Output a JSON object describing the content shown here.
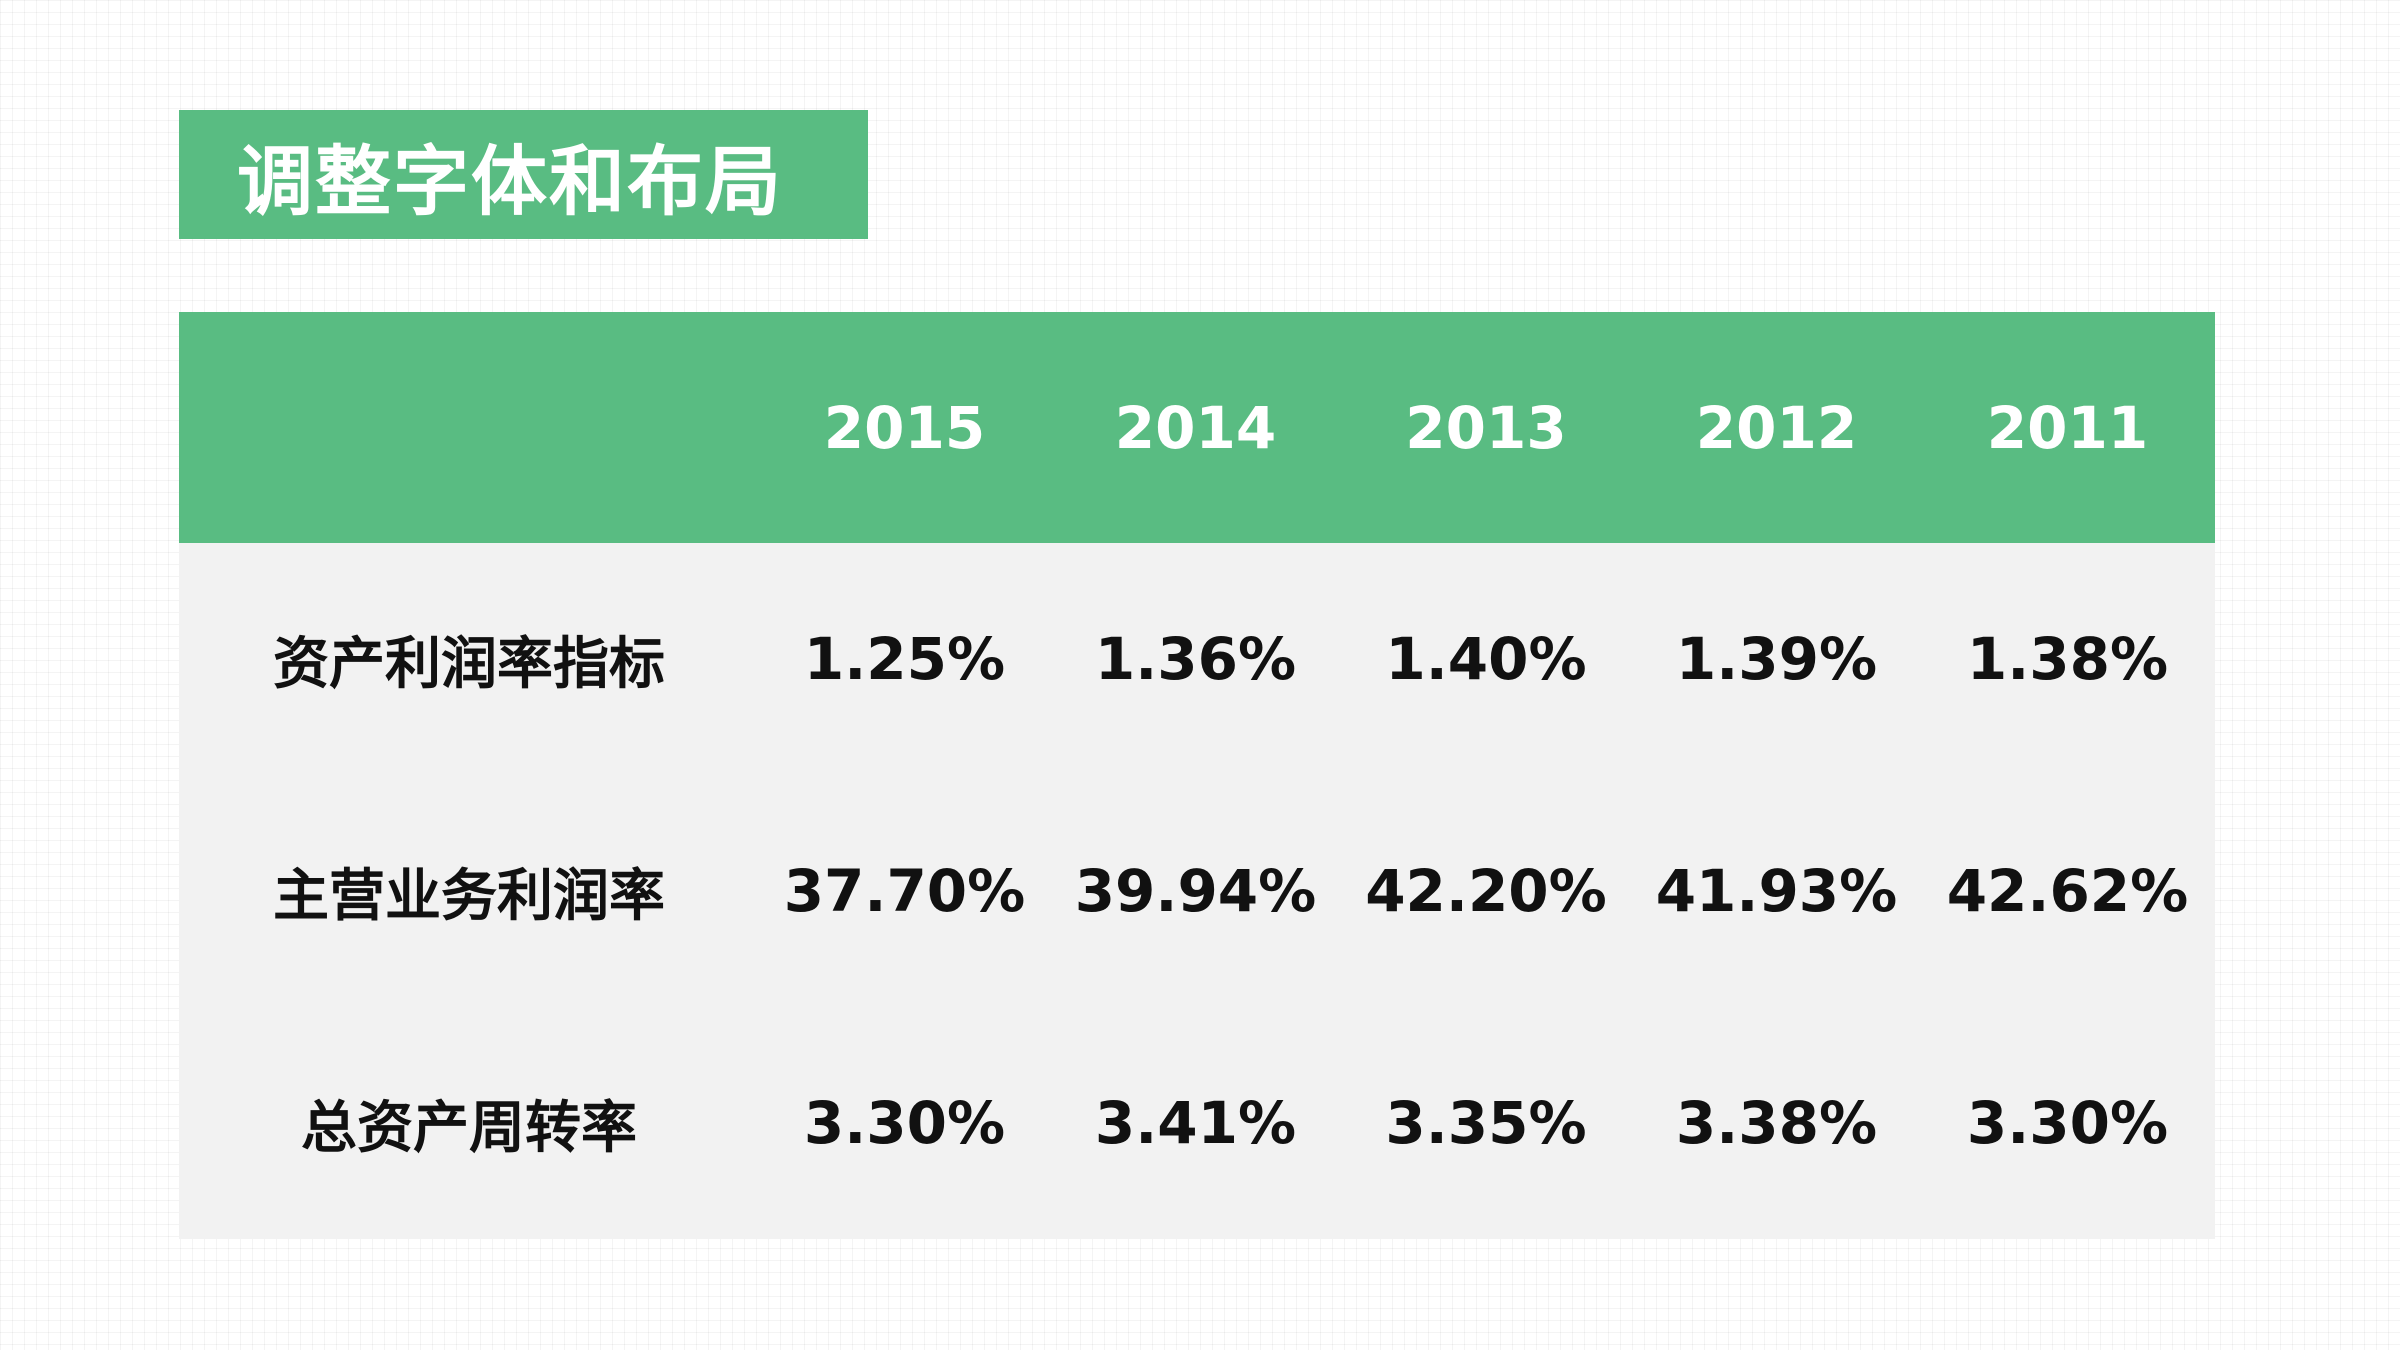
{
  "title": "调整字体和布局",
  "colors": {
    "accent": "#59bc82",
    "table_body": "#f2f2f2",
    "text": "#111111"
  },
  "chart_data": {
    "type": "table",
    "columns": [
      "2015",
      "2014",
      "2013",
      "2012",
      "2011"
    ],
    "rows": [
      {
        "label": "资产利润率指标",
        "values": [
          "1.25%",
          "1.36%",
          "1.40%",
          "1.39%",
          "1.38%"
        ]
      },
      {
        "label": "主营业务利润率",
        "values": [
          "37.70%",
          "39.94%",
          "42.20%",
          "41.93%",
          "42.62%"
        ]
      },
      {
        "label": "总资产周转率",
        "values": [
          "3.30%",
          "3.41%",
          "3.35%",
          "3.38%",
          "3.30%"
        ]
      }
    ]
  }
}
